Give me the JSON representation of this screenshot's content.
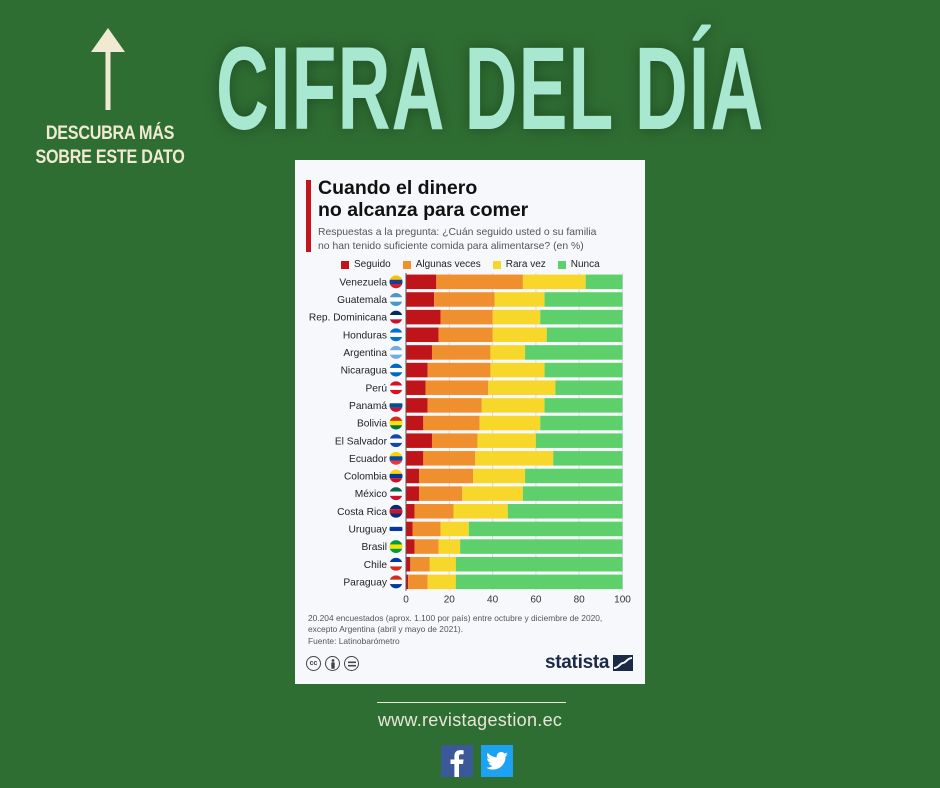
{
  "header": {
    "title": "CIFRA DEL DÍA",
    "cta_lines": [
      "DESCUBRA MÁS",
      "SOBRE ESTE DATO"
    ],
    "cta_icon": "arrow-up-icon"
  },
  "colors": {
    "background": "#2f6e33",
    "title": "#a8e8d0",
    "cta": "#f1ead2",
    "accent": "#c4151c"
  },
  "chart_data": {
    "type": "bar",
    "orientation": "horizontal-stacked-100",
    "title": "Cuando el dinero no alcanza para comer",
    "title_lines": [
      "Cuando el dinero",
      "no alcanza para comer"
    ],
    "subtitle_lines": [
      "Respuestas a la pregunta: ¿Cuán seguido usted o su familia",
      "no han tenido suficiente comida para alimentarse? (en %)"
    ],
    "xlabel": "",
    "ylabel": "",
    "xlim": [
      0,
      100
    ],
    "xticks": [
      0,
      20,
      40,
      60,
      80,
      100
    ],
    "grid": true,
    "legend_position": "top",
    "categories": [
      "Venezuela",
      "Guatemala",
      "Rep. Dominicana",
      "Honduras",
      "Argentina",
      "Nicaragua",
      "Perú",
      "Panamá",
      "Bolivia",
      "El Salvador",
      "Ecuador",
      "Colombia",
      "México",
      "Costa Rica",
      "Uruguay",
      "Brasil",
      "Chile",
      "Paraguay"
    ],
    "series": [
      {
        "name": "Seguido",
        "color": "#c0141b",
        "values": [
          14,
          13,
          16,
          15,
          12,
          10,
          9,
          10,
          8,
          12,
          8,
          6,
          6,
          4,
          3,
          4,
          2,
          1
        ]
      },
      {
        "name": "Algunas veces",
        "color": "#f08f2e",
        "values": [
          40,
          28,
          24,
          25,
          27,
          29,
          29,
          25,
          26,
          21,
          24,
          25,
          20,
          18,
          13,
          11,
          9,
          9
        ]
      },
      {
        "name": "Rara vez",
        "color": "#f7d72a",
        "values": [
          29,
          23,
          22,
          25,
          16,
          25,
          31,
          29,
          28,
          27,
          36,
          24,
          28,
          25,
          13,
          10,
          12,
          13
        ]
      },
      {
        "name": "Nunca",
        "color": "#5dd06c",
        "values": [
          17,
          36,
          38,
          35,
          45,
          36,
          31,
          36,
          38,
          40,
          32,
          45,
          46,
          53,
          71,
          75,
          77,
          77
        ]
      }
    ],
    "note_lines": [
      "20.204 encuestados (aprox. 1.100 por país) entre octubre y diciembre de 2020,",
      "excepto Argentina (abril y mayo de 2021)."
    ],
    "source": "Fuente: Latinobarómetro",
    "brand": "statista"
  },
  "footer": {
    "website": "www.revistagestion.ec",
    "social": [
      {
        "name": "facebook",
        "icon": "facebook-icon"
      },
      {
        "name": "twitter",
        "icon": "twitter-icon"
      }
    ]
  }
}
